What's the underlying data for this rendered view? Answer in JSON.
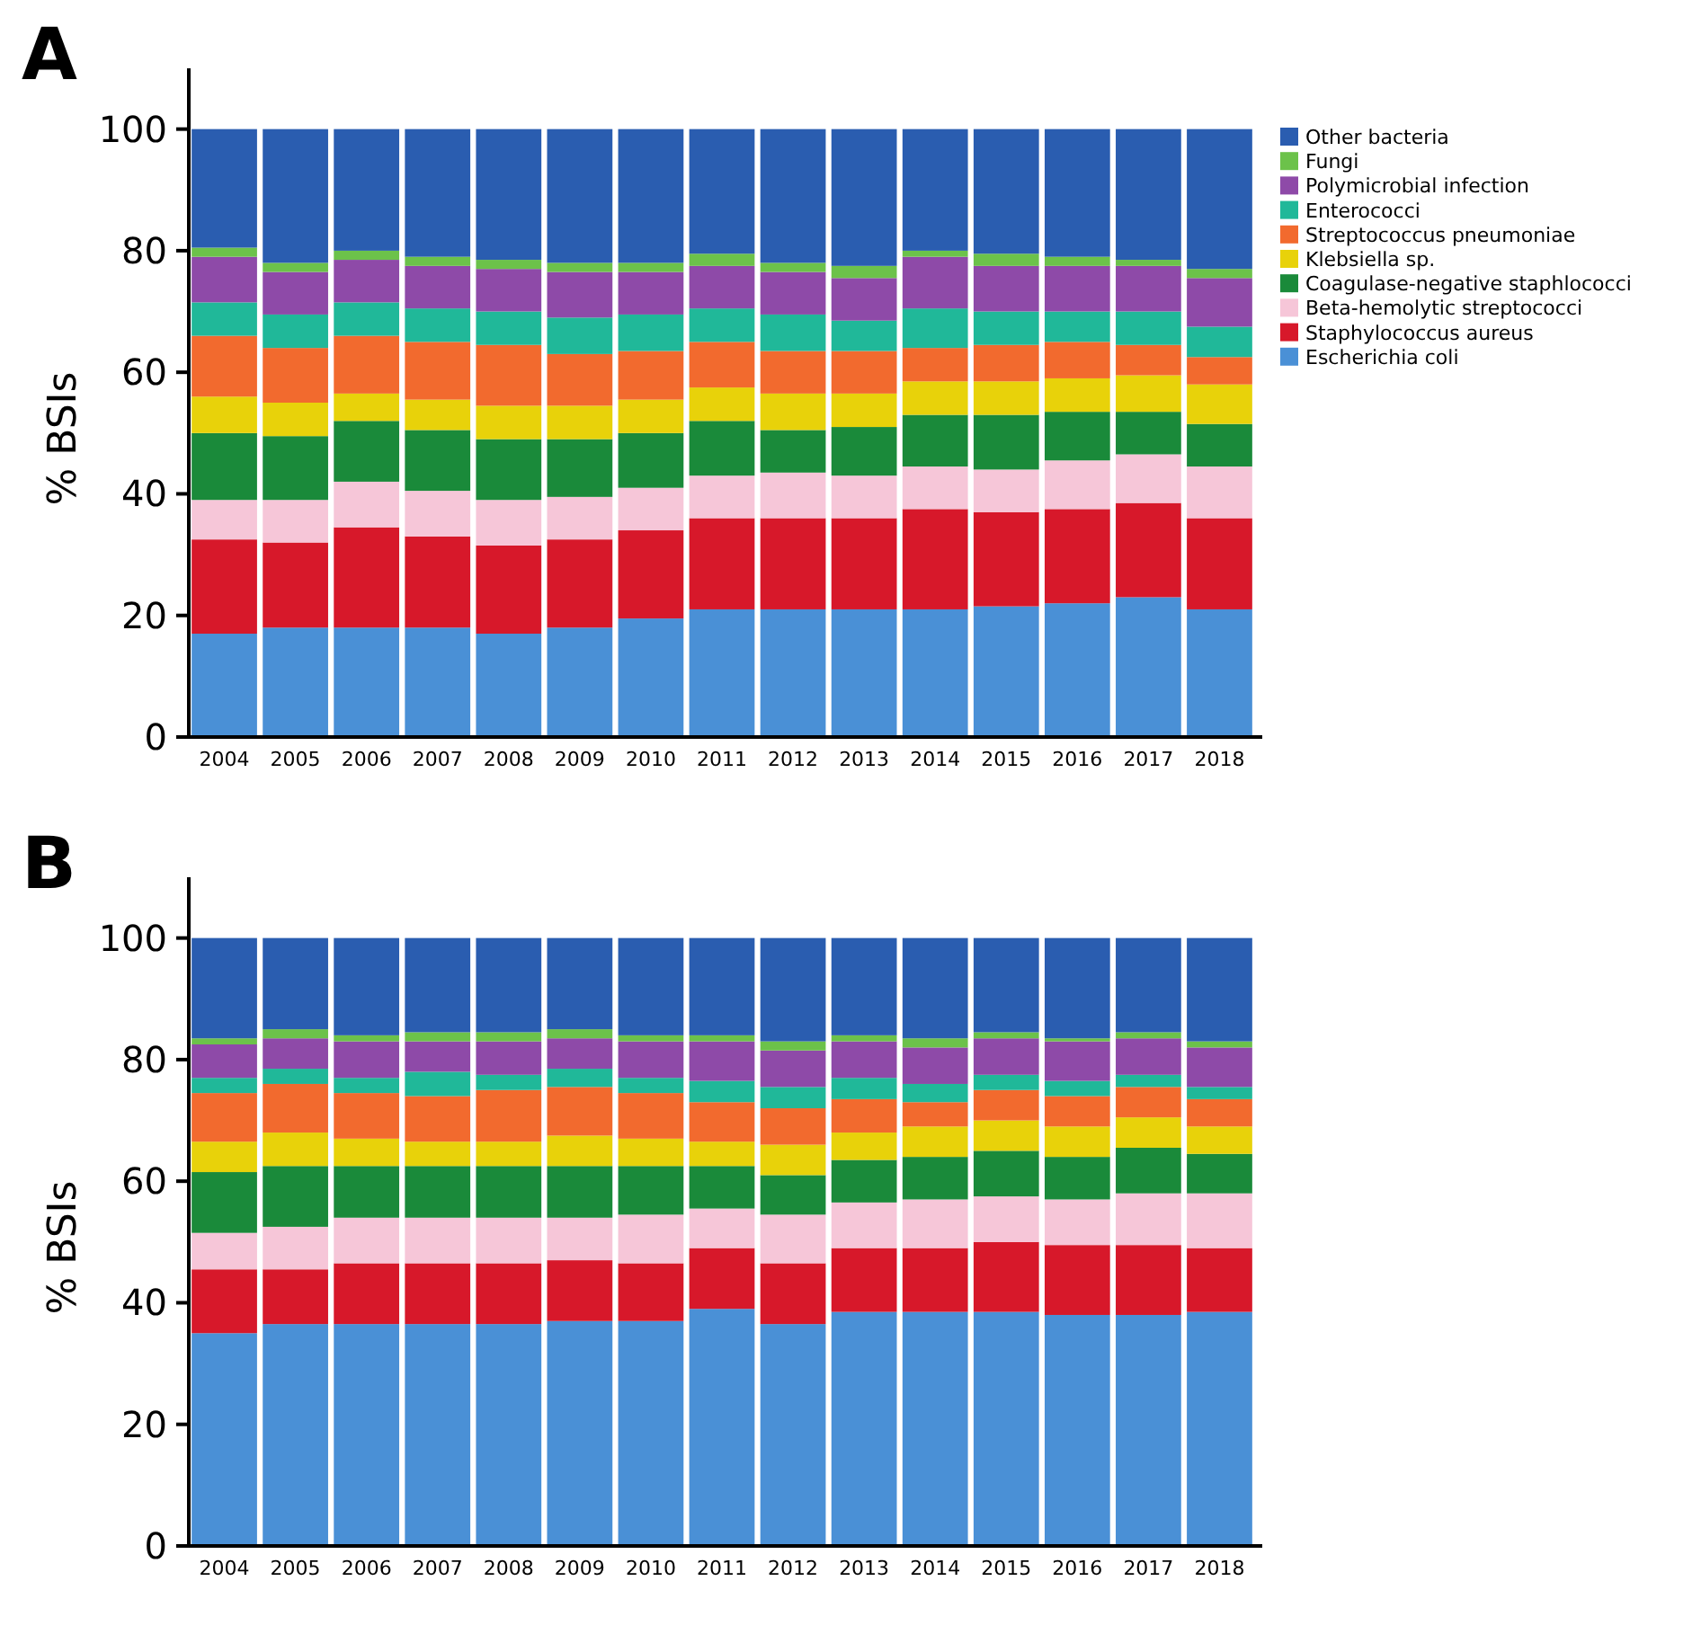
{
  "chart_data": [
    {
      "type": "bar",
      "title": "A",
      "ylabel": "% BSIs",
      "stacked": true,
      "legend": "right",
      "grid": false,
      "ylim": [
        0,
        110
      ],
      "yticks": [
        0,
        20,
        40,
        60,
        80,
        100
      ],
      "categories": [
        "2004",
        "2005",
        "2006",
        "2007",
        "2008",
        "2009",
        "2010",
        "2011",
        "2012",
        "2013",
        "2014",
        "2015",
        "2016",
        "2017",
        "2018"
      ],
      "series": [
        {
          "name": "Escherichia coli",
          "color": "#4a90d6",
          "values": [
            17,
            18,
            18,
            18,
            17,
            18,
            19.5,
            21,
            21,
            21,
            21,
            21.5,
            22,
            23,
            21
          ]
        },
        {
          "name": "Staphylococcus aureus",
          "color": "#d7182a",
          "values": [
            15.5,
            14,
            16.5,
            15,
            14.5,
            14.5,
            14.5,
            15,
            15,
            15,
            16.5,
            15.5,
            15.5,
            15.5,
            15
          ]
        },
        {
          "name": "Beta-hemolytic streptococci",
          "color": "#f6c6d8",
          "values": [
            6.5,
            7,
            7.5,
            7.5,
            7.5,
            7,
            7,
            7,
            7.5,
            7,
            7,
            7,
            8,
            8,
            8.5
          ]
        },
        {
          "name": "Coagulase-negative staphlococci",
          "color": "#1a8a3a",
          "values": [
            11,
            10.5,
            10,
            10,
            10,
            9.5,
            9,
            9,
            7,
            8,
            8.5,
            9,
            8,
            7,
            7
          ]
        },
        {
          "name": "Klebsiella sp.",
          "color": "#e8d20a",
          "values": [
            6,
            5.5,
            4.5,
            5,
            5.5,
            5.5,
            5.5,
            5.5,
            6,
            5.5,
            5.5,
            5.5,
            5.5,
            6,
            6.5
          ]
        },
        {
          "name": "Streptococcus pneumoniae",
          "color": "#f26a2e",
          "values": [
            10,
            9,
            9.5,
            9.5,
            10,
            8.5,
            8,
            7.5,
            7,
            7,
            5.5,
            6,
            6,
            5,
            4.5
          ]
        },
        {
          "name": "Enterococci",
          "color": "#20b899",
          "values": [
            5.5,
            5.5,
            5.5,
            5.5,
            5.5,
            6,
            6,
            5.5,
            6,
            5,
            6.5,
            5.5,
            5,
            5.5,
            5
          ]
        },
        {
          "name": "Polymicrobial infection",
          "color": "#8e4aa8",
          "values": [
            7.5,
            7,
            7,
            7,
            7,
            7.5,
            7,
            7,
            7,
            7,
            8.5,
            7.5,
            7.5,
            7.5,
            8
          ]
        },
        {
          "name": "Fungi",
          "color": "#6cc24a",
          "values": [
            1.5,
            1.5,
            1.5,
            1.5,
            1.5,
            1.5,
            1.5,
            2,
            1.5,
            2,
            1,
            2,
            1.5,
            1,
            1.5
          ]
        },
        {
          "name": "Other bacteria",
          "color": "#2a5db0",
          "values": [
            19.5,
            22,
            20,
            21,
            21.5,
            22,
            22,
            20.5,
            22,
            22.5,
            20,
            20.5,
            21,
            21.5,
            23
          ]
        }
      ]
    },
    {
      "type": "bar",
      "title": "B",
      "ylabel": "% BSIs",
      "stacked": true,
      "grid": false,
      "ylim": [
        0,
        110
      ],
      "yticks": [
        0,
        20,
        40,
        60,
        80,
        100
      ],
      "categories": [
        "2004",
        "2005",
        "2006",
        "2007",
        "2008",
        "2009",
        "2010",
        "2011",
        "2012",
        "2013",
        "2014",
        "2015",
        "2016",
        "2017",
        "2018"
      ],
      "series": [
        {
          "color": "#4a90d6",
          "values": [
            35,
            36.5,
            36.5,
            36.5,
            36.5,
            37,
            37,
            39,
            36.5,
            38.5,
            38.5,
            38.5,
            38,
            38,
            38.5
          ]
        },
        {
          "color": "#d7182a",
          "values": [
            10.5,
            9,
            10,
            10,
            10,
            10,
            9.5,
            10,
            10,
            10.5,
            10.5,
            11.5,
            11.5,
            11.5,
            10.5
          ]
        },
        {
          "color": "#f6c6d8",
          "values": [
            6,
            7,
            7.5,
            7.5,
            7.5,
            7,
            8,
            6.5,
            8,
            7.5,
            8,
            7.5,
            7.5,
            8.5,
            9
          ]
        },
        {
          "color": "#1a8a3a",
          "values": [
            10,
            10,
            8.5,
            8.5,
            8.5,
            8.5,
            8,
            7,
            6.5,
            7,
            7,
            7.5,
            7,
            7.5,
            6.5
          ]
        },
        {
          "color": "#e8d20a",
          "values": [
            5,
            5.5,
            4.5,
            4,
            4,
            5,
            4.5,
            4,
            5,
            4.5,
            5,
            5,
            5,
            5,
            4.5
          ]
        },
        {
          "color": "#f26a2e",
          "values": [
            8,
            8,
            7.5,
            7.5,
            8.5,
            8,
            7.5,
            6.5,
            6,
            5.5,
            4,
            5,
            5,
            5,
            4.5
          ]
        },
        {
          "color": "#20b899",
          "values": [
            2.5,
            2.5,
            2.5,
            4,
            2.5,
            3,
            2.5,
            3.5,
            3.5,
            3.5,
            3,
            2.5,
            2.5,
            2,
            2
          ]
        },
        {
          "color": "#8e4aa8",
          "values": [
            5.5,
            5,
            6,
            5,
            5.5,
            5,
            6,
            6.5,
            6,
            6,
            6,
            6,
            6.5,
            6,
            6.5
          ]
        },
        {
          "color": "#6cc24a",
          "values": [
            1,
            1.5,
            1,
            1.5,
            1.5,
            1.5,
            1,
            1,
            1.5,
            1,
            1.5,
            1,
            0.5,
            1,
            1
          ]
        },
        {
          "color": "#2a5db0",
          "values": [
            16.5,
            15,
            16,
            15.5,
            15.5,
            15,
            16,
            16,
            17,
            16,
            16.5,
            15.5,
            16.5,
            15.5,
            17
          ]
        }
      ]
    }
  ]
}
